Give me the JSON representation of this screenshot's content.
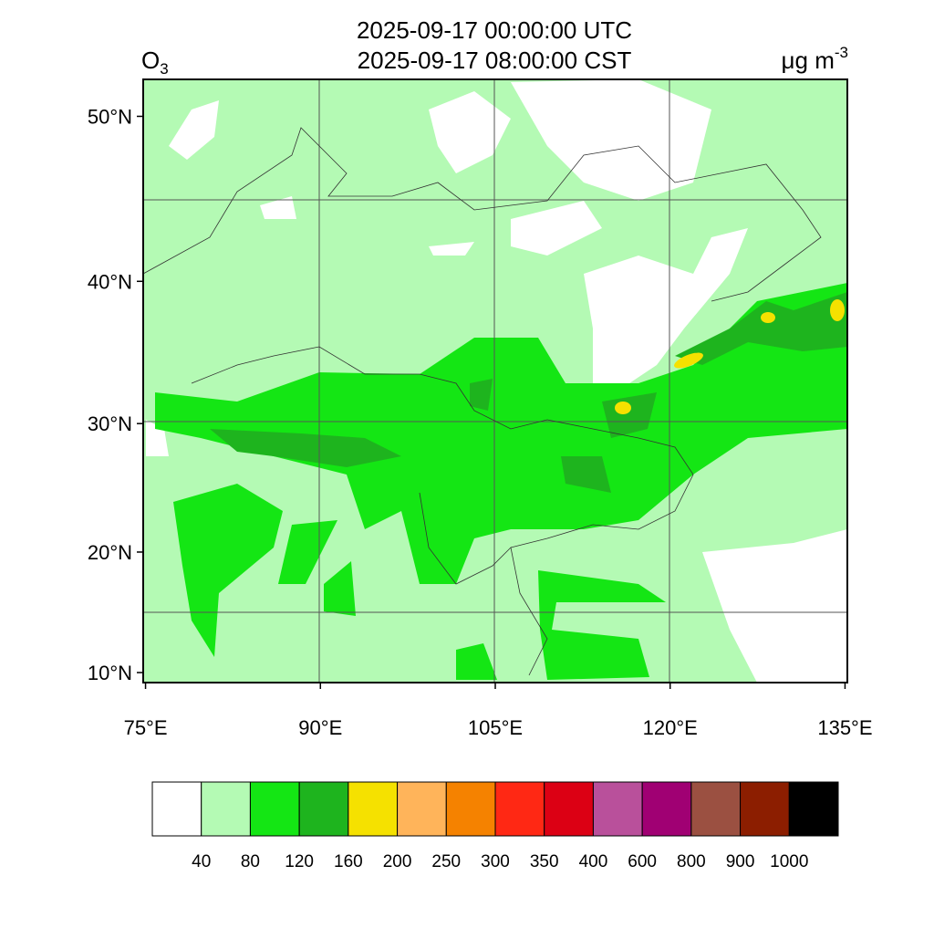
{
  "title": [
    "2025-09-17 00:00:00 UTC",
    "2025-09-17 08:00:00 CST"
  ],
  "variable": {
    "base": "O",
    "sub": "3"
  },
  "units": {
    "base": "μg m",
    "sup": "-3"
  },
  "map": {
    "lonlim": [
      74.8,
      135.2
    ],
    "latlim": [
      9.15,
      52.0
    ],
    "lat_ticks": [
      {
        "value": 50,
        "label": "50°N"
      },
      {
        "value": 40,
        "label": "40°N"
      },
      {
        "value": 30,
        "label": "30°N"
      },
      {
        "value": 20,
        "label": "20°N"
      },
      {
        "value": 10,
        "label": "10°N"
      }
    ],
    "lon_ticks": [
      {
        "value": 75,
        "label": "75°E"
      },
      {
        "value": 90,
        "label": "90°E"
      },
      {
        "value": 105,
        "label": "105°E"
      },
      {
        "value": 120,
        "label": "120°E"
      },
      {
        "value": 135,
        "label": "135°E"
      }
    ]
  },
  "colorbar": {
    "colors": [
      "#ffffff",
      "#b4fab4",
      "#14e614",
      "#1eb41e",
      "#f5e100",
      "#ffb45a",
      "#f58200",
      "#ff2814",
      "#dc0014",
      "#b9509b",
      "#a00073",
      "#9b5041",
      "#8c1e00",
      "#000000"
    ],
    "labels": [
      "40",
      "80",
      "120",
      "160",
      "200",
      "250",
      "300",
      "350",
      "400",
      "600",
      "800",
      "900",
      "1000"
    ]
  }
}
